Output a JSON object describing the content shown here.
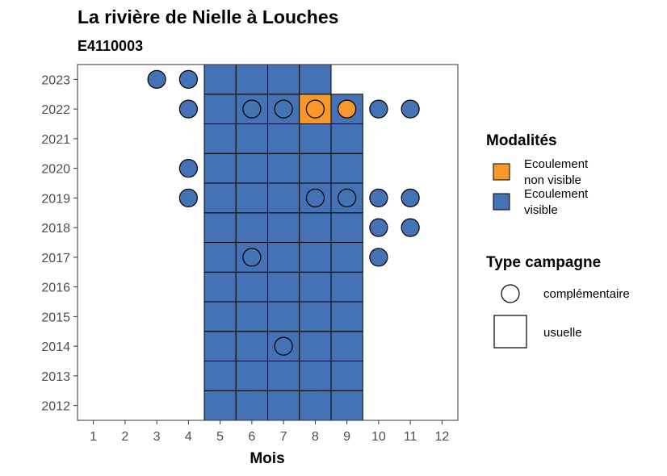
{
  "chart_data": {
    "type": "heatmap",
    "title": "La rivière de Nielle à Louches",
    "subtitle": "E4110003",
    "xlabel": "Mois",
    "ylabel": "",
    "x_ticks": [
      "1",
      "2",
      "3",
      "4",
      "5",
      "6",
      "7",
      "8",
      "9",
      "10",
      "11",
      "12"
    ],
    "y_ticks": [
      "2012",
      "2013",
      "2014",
      "2015",
      "2016",
      "2017",
      "2018",
      "2019",
      "2020",
      "2021",
      "2022",
      "2023"
    ],
    "xlim": [
      0.5,
      12.5
    ],
    "ylim": [
      2011.5,
      2023.5
    ],
    "colors": {
      "ecoulement_visible": "#4472b4",
      "ecoulement_non_visible": "#f7982c"
    },
    "usuelle_cells": [
      {
        "year": 2012,
        "months": [
          5,
          6,
          7,
          8,
          9
        ],
        "modalite": "visible"
      },
      {
        "year": 2013,
        "months": [
          5,
          6,
          7,
          8,
          9
        ],
        "modalite": "visible"
      },
      {
        "year": 2014,
        "months": [
          5,
          6,
          7,
          8,
          9
        ],
        "modalite": "visible"
      },
      {
        "year": 2015,
        "months": [
          5,
          6,
          7,
          8,
          9
        ],
        "modalite": "visible"
      },
      {
        "year": 2016,
        "months": [
          5,
          6,
          7,
          8,
          9
        ],
        "modalite": "visible"
      },
      {
        "year": 2017,
        "months": [
          5,
          6,
          7,
          8,
          9
        ],
        "modalite": "visible"
      },
      {
        "year": 2018,
        "months": [
          5,
          6,
          7,
          8,
          9
        ],
        "modalite": "visible"
      },
      {
        "year": 2019,
        "months": [
          5,
          6,
          7,
          8,
          9
        ],
        "modalite": "visible"
      },
      {
        "year": 2020,
        "months": [
          5,
          6,
          7,
          8,
          9
        ],
        "modalite": "visible"
      },
      {
        "year": 2021,
        "months": [
          5,
          6,
          7,
          8,
          9
        ],
        "modalite": "visible"
      },
      {
        "year": 2022,
        "months": [
          5,
          6,
          7,
          9
        ],
        "modalite": "visible"
      },
      {
        "year": 2022,
        "months": [
          8
        ],
        "modalite": "non_visible"
      },
      {
        "year": 2023,
        "months": [
          5,
          6,
          7,
          8
        ],
        "modalite": "visible"
      }
    ],
    "complementaire_points": [
      {
        "year": 2023,
        "month": 3,
        "modalite": "visible"
      },
      {
        "year": 2023,
        "month": 4,
        "modalite": "visible"
      },
      {
        "year": 2022,
        "month": 4,
        "modalite": "visible"
      },
      {
        "year": 2022,
        "month": 6,
        "modalite": "visible"
      },
      {
        "year": 2022,
        "month": 7,
        "modalite": "visible"
      },
      {
        "year": 2022,
        "month": 8,
        "modalite": "non_visible"
      },
      {
        "year": 2022,
        "month": 9,
        "modalite": "non_visible"
      },
      {
        "year": 2022,
        "month": 10,
        "modalite": "visible"
      },
      {
        "year": 2022,
        "month": 11,
        "modalite": "visible"
      },
      {
        "year": 2020,
        "month": 4,
        "modalite": "visible"
      },
      {
        "year": 2019,
        "month": 4,
        "modalite": "visible"
      },
      {
        "year": 2019,
        "month": 8,
        "modalite": "visible"
      },
      {
        "year": 2019,
        "month": 9,
        "modalite": "visible"
      },
      {
        "year": 2019,
        "month": 10,
        "modalite": "visible"
      },
      {
        "year": 2019,
        "month": 11,
        "modalite": "visible"
      },
      {
        "year": 2018,
        "month": 10,
        "modalite": "visible"
      },
      {
        "year": 2018,
        "month": 11,
        "modalite": "visible"
      },
      {
        "year": 2017,
        "month": 6,
        "modalite": "visible"
      },
      {
        "year": 2017,
        "month": 10,
        "modalite": "visible"
      },
      {
        "year": 2014,
        "month": 7,
        "modalite": "visible"
      }
    ],
    "legend": {
      "modalites_title": "Modalités",
      "modalites": [
        {
          "key": "non_visible",
          "line1": "Ecoulement",
          "line2": "non visible"
        },
        {
          "key": "visible",
          "line1": "Ecoulement",
          "line2": "visible"
        }
      ],
      "type_title": "Type campagne",
      "types": [
        {
          "key": "complementaire",
          "label": "complémentaire"
        },
        {
          "key": "usuelle",
          "label": "usuelle"
        }
      ],
      "position": "right"
    }
  }
}
